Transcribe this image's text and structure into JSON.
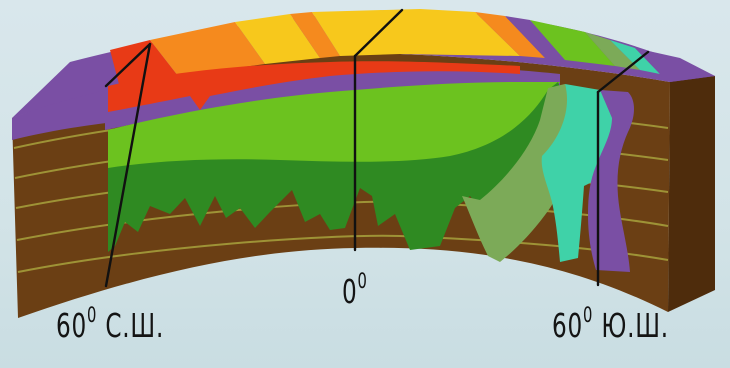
{
  "labels": {
    "left": {
      "num": "60",
      "sup": "0",
      "rest": " С.Ш."
    },
    "center": {
      "num": "0",
      "sup": "0"
    },
    "right": {
      "num": "60",
      "sup": "0",
      "rest": " Ю.Ш."
    }
  },
  "colors": {
    "background": "#d6e6ea",
    "soil": "#6b3f14",
    "soil_side": "#4e2c0c",
    "strata_line": "#a7a23c",
    "tundra_purple": "#7a4fa4",
    "dark_green": "#2f8a22",
    "light_green": "#6cc21f",
    "olive_green": "#7caa58",
    "teal": "#3fd2a8",
    "red": "#e83a16",
    "orange": "#f58a1e",
    "yellow": "#f7c81c",
    "meridian": "#111111"
  }
}
